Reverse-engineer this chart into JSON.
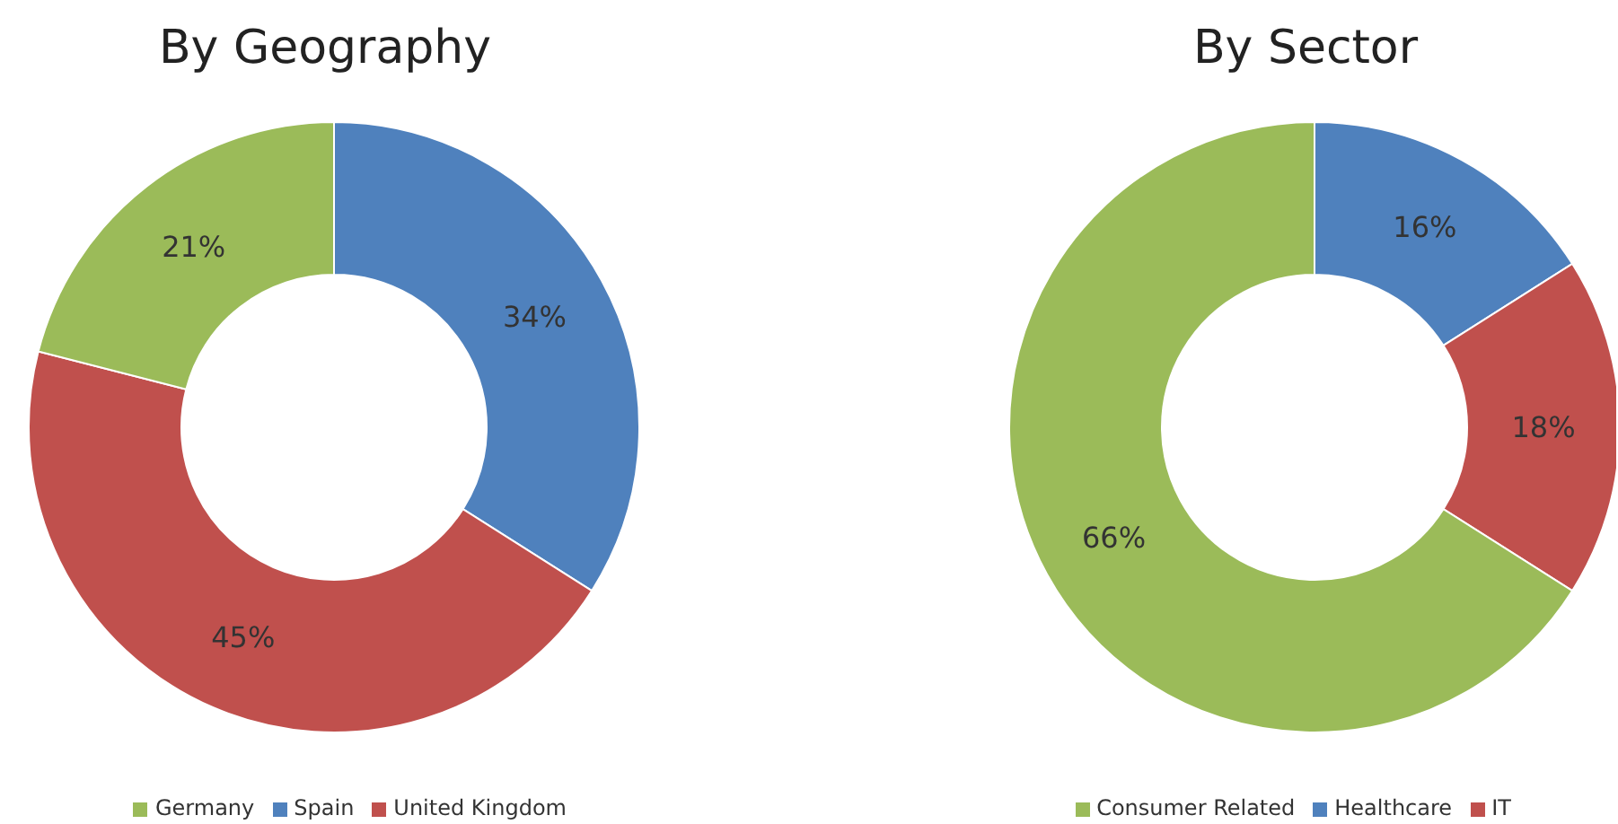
{
  "chart_data": [
    {
      "type": "donut",
      "title": "By Geography",
      "categories": [
        "Spain",
        "United Kingdom",
        "Germany"
      ],
      "values": [
        34,
        45,
        21
      ],
      "colors": [
        "#4f81bd",
        "#c0504d",
        "#9bbb59"
      ],
      "value_labels": [
        "34%",
        "45%",
        "21%"
      ],
      "legend": "bottom"
    },
    {
      "type": "donut",
      "title": "By Sector",
      "categories": [
        "Healthcare",
        "IT",
        "Consumer Related"
      ],
      "values": [
        16,
        18,
        66
      ],
      "colors": [
        "#4f81bd",
        "#c0504d",
        "#9bbb59"
      ],
      "value_labels": [
        "16%",
        "18%",
        "66%"
      ],
      "legend": "bottom"
    }
  ]
}
